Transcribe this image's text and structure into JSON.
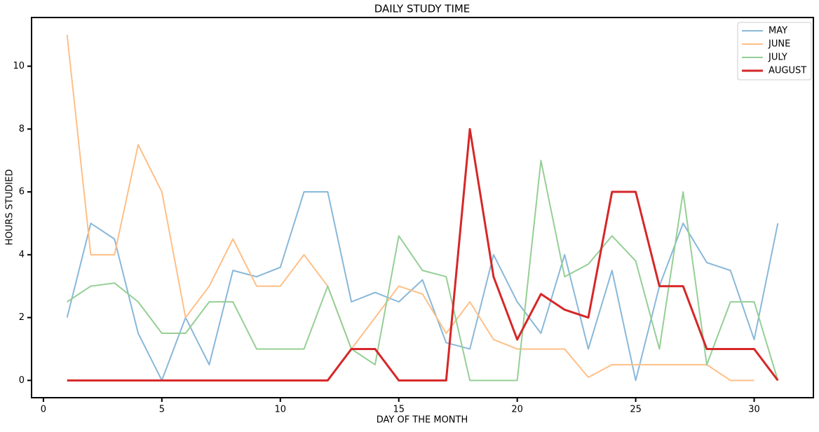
{
  "chart_data": {
    "type": "line",
    "title": "DAILY STUDY TIME",
    "x_label": "DAY OF THE MONTH",
    "y_label": "HOURS STUDIED",
    "x": [
      1,
      2,
      3,
      4,
      5,
      6,
      7,
      8,
      9,
      10,
      11,
      12,
      13,
      14,
      15,
      16,
      17,
      18,
      19,
      20,
      21,
      22,
      23,
      24,
      25,
      26,
      27,
      28,
      29,
      30,
      31
    ],
    "series": [
      {
        "name": "MAY",
        "color": "#89b8d9",
        "width": 2,
        "values": [
          2,
          5,
          4.5,
          1.5,
          0,
          2,
          0.5,
          3.5,
          3.3,
          3.6,
          6,
          6,
          2.5,
          2.8,
          2.5,
          3.2,
          1.2,
          1,
          4,
          2.5,
          1.5,
          4,
          1,
          3.5,
          0,
          3,
          5,
          3.75,
          3.5,
          1.3,
          5
        ]
      },
      {
        "name": "JUNE",
        "color": "#ffbf86",
        "width": 2,
        "values": [
          11,
          4,
          4,
          7.5,
          6,
          2,
          3,
          4.5,
          3,
          3,
          4,
          3,
          1,
          2,
          3,
          2.75,
          1.5,
          2.5,
          1.3,
          1,
          1,
          1,
          0.1,
          0.5,
          0.5,
          0.5,
          0.5,
          0.5,
          0,
          0,
          null
        ]
      },
      {
        "name": "JULY",
        "color": "#95cf95",
        "width": 2,
        "values": [
          2.5,
          3,
          3.1,
          2.5,
          1.5,
          1.5,
          2.5,
          2.5,
          1,
          1,
          1,
          3,
          1,
          0.5,
          4.6,
          3.5,
          3.3,
          0,
          0,
          0,
          7,
          3.3,
          3.7,
          4.6,
          3.8,
          1,
          6,
          0.5,
          2.5,
          2.5,
          0
        ]
      },
      {
        "name": "AUGUST",
        "color": "#d62728",
        "width": 3,
        "values": [
          0,
          0,
          0,
          0,
          0,
          0,
          0,
          0,
          0,
          0,
          0,
          0,
          1,
          1,
          0,
          0,
          0,
          8,
          3.3,
          1.3,
          2.75,
          2.25,
          2,
          6,
          6,
          3,
          3,
          1,
          1,
          1,
          0
        ]
      }
    ],
    "xlim": [
      -0.5,
      32.5
    ],
    "xticks": [
      0,
      5,
      10,
      15,
      20,
      25,
      30
    ],
    "ylim": [
      -0.55,
      11.55
    ],
    "yticks": [
      0,
      2,
      4,
      6,
      8,
      10
    ],
    "legend": "upper right"
  }
}
